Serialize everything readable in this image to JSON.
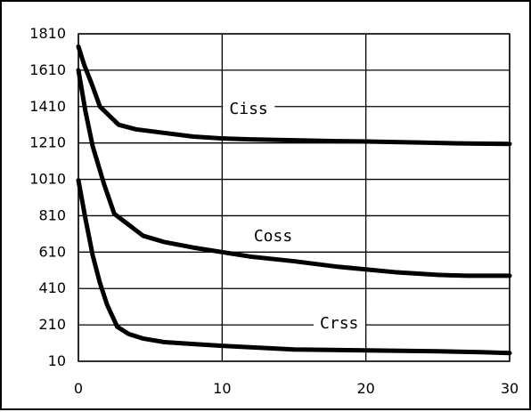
{
  "chart_data": {
    "type": "line",
    "title": "",
    "xlabel": "",
    "ylabel": "",
    "xlim": [
      0,
      30
    ],
    "ylim": [
      10,
      1810
    ],
    "x_ticks": [
      "0",
      "10",
      "20",
      "30"
    ],
    "y_ticks": [
      "10",
      "210",
      "410",
      "610",
      "810",
      "1010",
      "1210",
      "1410",
      "1610",
      "1810"
    ],
    "grid": true,
    "legend": "none",
    "series": [
      {
        "name": "Ciss",
        "label": "Ciss",
        "label_at": {
          "x": 10.5,
          "y": 1390
        },
        "color": "#000000",
        "points": [
          [
            0,
            1740
          ],
          [
            0.4,
            1640
          ],
          [
            0.9,
            1540
          ],
          [
            1.5,
            1410
          ],
          [
            2.8,
            1310
          ],
          [
            4,
            1285
          ],
          [
            6,
            1265
          ],
          [
            8,
            1245
          ],
          [
            10,
            1235
          ],
          [
            12,
            1230
          ],
          [
            15,
            1225
          ],
          [
            18,
            1220
          ],
          [
            20,
            1218
          ],
          [
            24,
            1212
          ],
          [
            27,
            1207
          ],
          [
            30,
            1205
          ]
        ]
      },
      {
        "name": "Coss",
        "label": "Coss",
        "label_at": {
          "x": 12.2,
          "y": 690
        },
        "color": "#000000",
        "points": [
          [
            0,
            1610
          ],
          [
            0.5,
            1380
          ],
          [
            1,
            1190
          ],
          [
            1.8,
            980
          ],
          [
            2.5,
            820
          ],
          [
            3.5,
            760
          ],
          [
            4.5,
            700
          ],
          [
            6,
            665
          ],
          [
            8,
            635
          ],
          [
            10,
            610
          ],
          [
            12,
            585
          ],
          [
            15,
            560
          ],
          [
            18,
            530
          ],
          [
            20,
            515
          ],
          [
            22,
            500
          ],
          [
            25,
            485
          ],
          [
            27,
            480
          ],
          [
            30,
            480
          ]
        ]
      },
      {
        "name": "Crss",
        "label": "Crss",
        "label_at": {
          "x": 16.8,
          "y": 210
        },
        "color": "#000000",
        "points": [
          [
            0,
            1005
          ],
          [
            0.5,
            790
          ],
          [
            1,
            590
          ],
          [
            1.5,
            440
          ],
          [
            2,
            320
          ],
          [
            2.7,
            200
          ],
          [
            3.5,
            160
          ],
          [
            4.5,
            135
          ],
          [
            6,
            115
          ],
          [
            8,
            105
          ],
          [
            10,
            95
          ],
          [
            15,
            75
          ],
          [
            20,
            70
          ],
          [
            25,
            65
          ],
          [
            28,
            60
          ],
          [
            30,
            55
          ]
        ]
      }
    ]
  }
}
